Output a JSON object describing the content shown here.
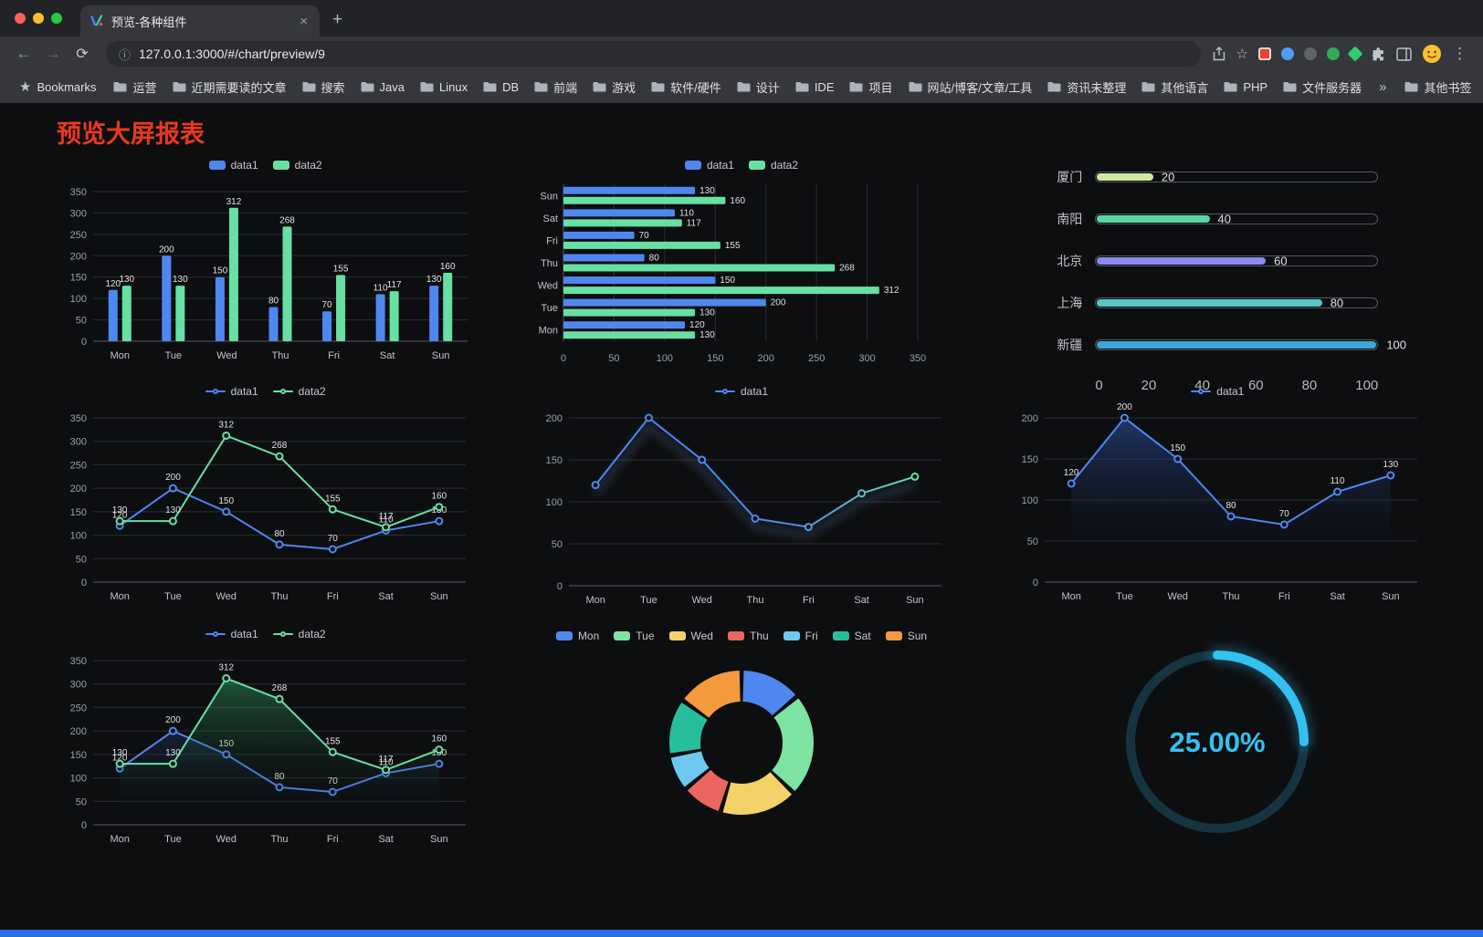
{
  "window_controls": {
    "close_color": "#ff5f57",
    "minimize_color": "#febc2e",
    "zoom_color": "#28c840"
  },
  "tab": {
    "title": "预览-各种组件",
    "close_label": "×",
    "new_tab_label": "+"
  },
  "toolbar": {
    "back": "←",
    "forward": "→",
    "reload": "⟳",
    "site_info": "ⓘ",
    "url": "127.0.0.1:3000/#/chart/preview/9",
    "bookmark_star": "☆",
    "menu": "⋮"
  },
  "bookmarks": {
    "manager": "Bookmarks",
    "items": [
      "运营",
      "近期需要读的文章",
      "搜索",
      "Java",
      "Linux",
      "DB",
      "前端",
      "游戏",
      "软件/硬件",
      "设计",
      "IDE",
      "项目",
      "网站/博客/文章/工具",
      "资讯未整理",
      "其他语言",
      "PHP",
      "文件服务器"
    ],
    "overflow": "»",
    "other": "其他书签"
  },
  "page": {
    "title": "预览大屏报表"
  },
  "theme": {
    "page_bg": "#0d0e10",
    "chart_text": "#c2c4c7",
    "axis_text": "#9aa0a6",
    "grid_line": "#2b2e33",
    "axis_line": "#565a60",
    "value_label": "#e0e2e5",
    "title_color": "#e8391d",
    "accent_bottom_bar": "#2b6be4",
    "series_blue": "#4f87f0",
    "series_green": "#67e0a3"
  },
  "chart_data": [
    {
      "id": "grouped-bar",
      "type": "bar",
      "orientation": "vertical",
      "categories": [
        "Mon",
        "Tue",
        "Wed",
        "Thu",
        "Fri",
        "Sat",
        "Sun"
      ],
      "series": [
        {
          "name": "data1",
          "color": "#4f87f0",
          "values": [
            120,
            200,
            150,
            80,
            70,
            110,
            130
          ]
        },
        {
          "name": "data2",
          "color": "#67e0a3",
          "values": [
            130,
            130,
            312,
            268,
            155,
            117,
            160
          ]
        }
      ],
      "ylim": [
        0,
        350
      ],
      "ytick_step": 50,
      "grid": true,
      "legend_position": "top",
      "value_labels": true
    },
    {
      "id": "hbar",
      "type": "bar",
      "orientation": "horizontal",
      "categories": [
        "Mon",
        "Tue",
        "Wed",
        "Thu",
        "Fri",
        "Sat",
        "Sun"
      ],
      "series": [
        {
          "name": "data1",
          "color": "#4f87f0",
          "values": [
            120,
            200,
            150,
            80,
            70,
            110,
            130
          ]
        },
        {
          "name": "data2",
          "color": "#67e0a3",
          "values": [
            130,
            130,
            312,
            268,
            155,
            117,
            160
          ]
        }
      ],
      "xlim": [
        0,
        350
      ],
      "xtick_step": 50,
      "grid": true,
      "legend_position": "top",
      "value_labels": true
    },
    {
      "id": "progress",
      "type": "bar",
      "subtype": "progress-list",
      "categories": [
        "厦门",
        "南阳",
        "北京",
        "上海",
        "新疆"
      ],
      "values": [
        20,
        40,
        60,
        80,
        100
      ],
      "colors": [
        "#cde9a2",
        "#57d6a4",
        "#8c89f0",
        "#55c8c4",
        "#3ba7da"
      ],
      "xlim": [
        0,
        100
      ],
      "xticks": [
        0,
        20,
        40,
        60,
        80,
        100
      ],
      "value_labels": true
    },
    {
      "id": "line-two",
      "type": "line",
      "categories": [
        "Mon",
        "Tue",
        "Wed",
        "Thu",
        "Fri",
        "Sat",
        "Sun"
      ],
      "series": [
        {
          "name": "data1",
          "color": "#4f87f0",
          "values": [
            120,
            200,
            150,
            80,
            70,
            110,
            130
          ]
        },
        {
          "name": "data2",
          "color": "#67e0a3",
          "values": [
            130,
            130,
            312,
            268,
            155,
            117,
            160
          ]
        }
      ],
      "ylim": [
        0,
        350
      ],
      "ytick_step": 50,
      "legend_position": "top",
      "value_labels": true
    },
    {
      "id": "line-gradient",
      "type": "line",
      "categories": [
        "Mon",
        "Tue",
        "Wed",
        "Thu",
        "Fri",
        "Sat",
        "Sun"
      ],
      "series": [
        {
          "name": "data1",
          "color": "#4f87f0",
          "color_end": "#67e0a3",
          "values": [
            120,
            200,
            150,
            80,
            70,
            110,
            130
          ]
        }
      ],
      "ylim": [
        0,
        200
      ],
      "ytick_step": 50,
      "legend_position": "top",
      "value_labels": false,
      "shadow": true
    },
    {
      "id": "line-area",
      "type": "line",
      "categories": [
        "Mon",
        "Tue",
        "Wed",
        "Thu",
        "Fri",
        "Sat",
        "Sun"
      ],
      "series": [
        {
          "name": "data1",
          "color": "#4f87f0",
          "area": true,
          "area_color": "rgba(50,95,190,0.5)",
          "values": [
            120,
            200,
            150,
            80,
            70,
            110,
            130
          ]
        }
      ],
      "ylim": [
        0,
        200
      ],
      "ytick_step": 50,
      "legend_position": "top",
      "value_labels": true
    },
    {
      "id": "area-two",
      "type": "line",
      "categories": [
        "Mon",
        "Tue",
        "Wed",
        "Thu",
        "Fri",
        "Sat",
        "Sun"
      ],
      "series": [
        {
          "name": "data1",
          "color": "#4f87f0",
          "area": true,
          "area_color": "rgba(40,80,150,0.28)",
          "values": [
            120,
            200,
            150,
            80,
            70,
            110,
            130
          ]
        },
        {
          "name": "data2",
          "color": "#67e0a3",
          "area": true,
          "area_color": "rgba(60,190,120,0.4)",
          "values": [
            130,
            130,
            312,
            268,
            155,
            117,
            160
          ]
        }
      ],
      "ylim": [
        0,
        350
      ],
      "ytick_step": 50,
      "legend_position": "top",
      "value_labels": true
    },
    {
      "id": "donut",
      "type": "pie",
      "inner_radius_ratio": 0.6,
      "categories": [
        "Mon",
        "Tue",
        "Wed",
        "Thu",
        "Fri",
        "Sat",
        "Sun"
      ],
      "values": [
        120,
        200,
        150,
        80,
        70,
        110,
        130
      ],
      "colors": [
        "#4f87f0",
        "#7de3a2",
        "#f3d368",
        "#ec6660",
        "#6cc8ee",
        "#27bf9b",
        "#f59a3d"
      ],
      "legend_position": "top"
    },
    {
      "id": "gauge",
      "type": "gauge",
      "value": 25,
      "label": "25.00%",
      "color": "#33c1f0",
      "track_color": "#163340"
    }
  ]
}
